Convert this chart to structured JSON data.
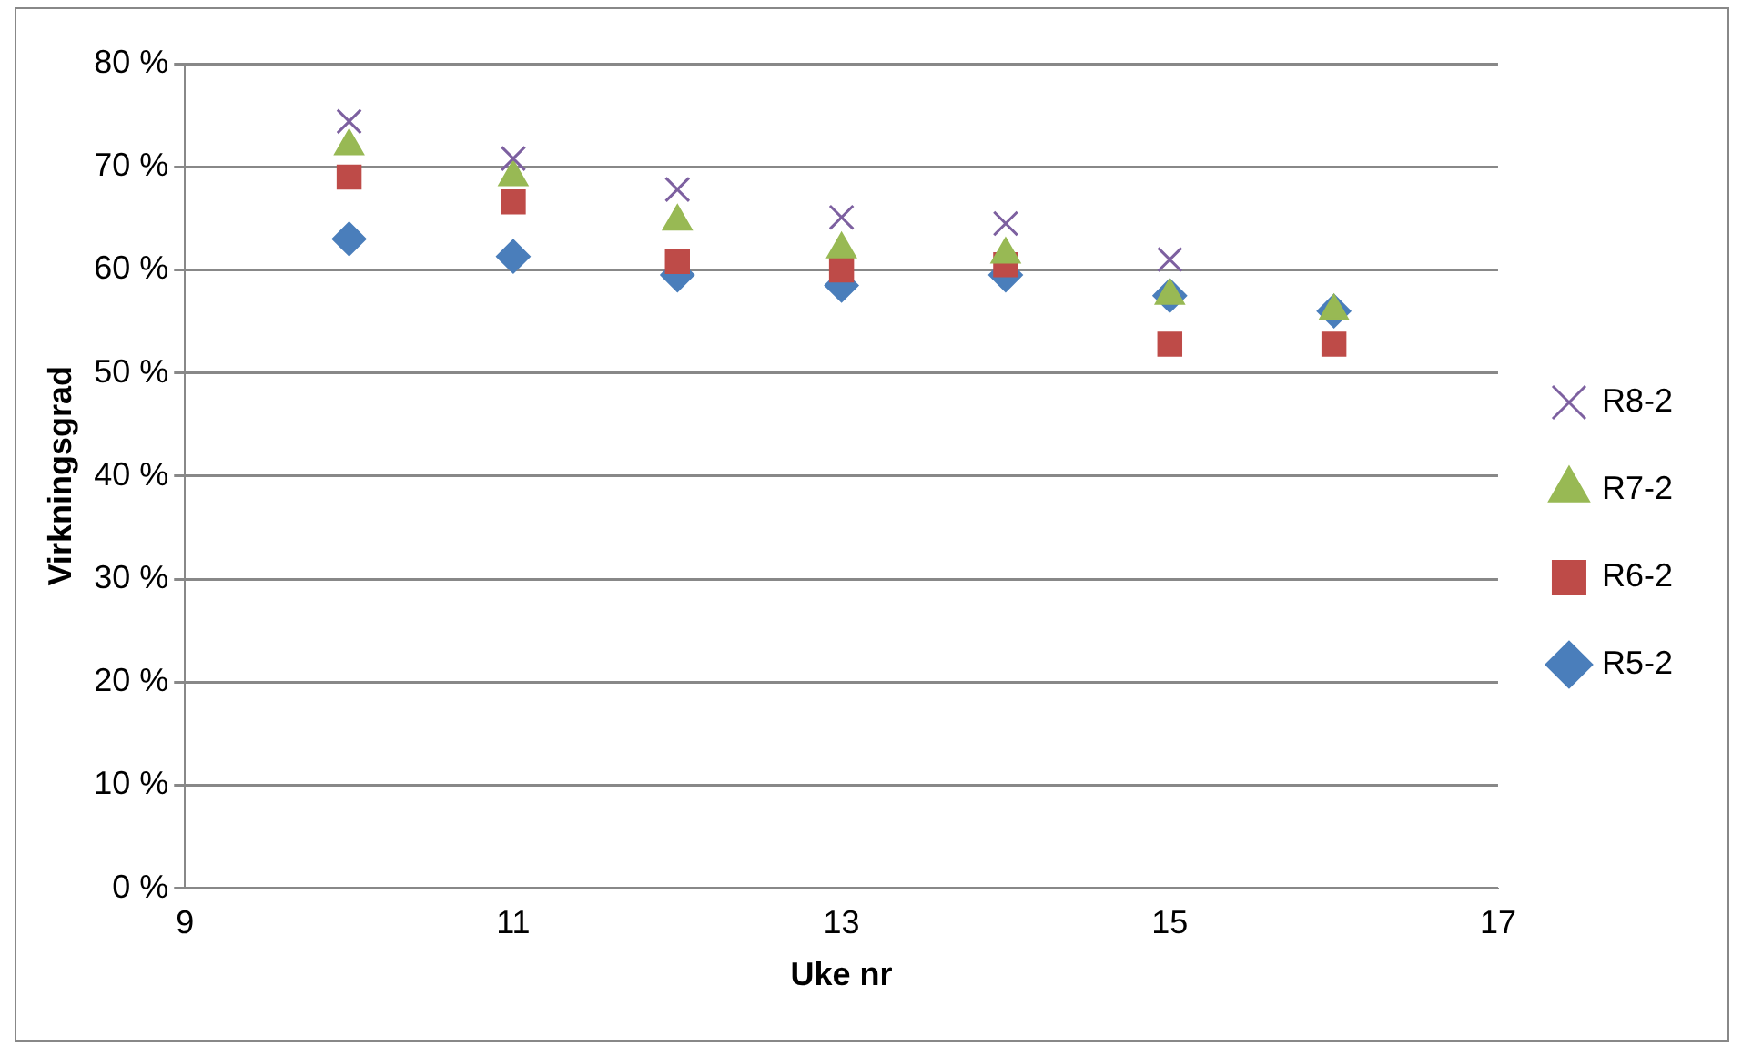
{
  "chart_data": {
    "type": "scatter",
    "xlabel": "Uke nr",
    "ylabel": "Virkningsgrad",
    "x": [
      10,
      11,
      12,
      13,
      14,
      15,
      16
    ],
    "series": [
      {
        "name": "R5-2",
        "color": "#4a7ebb",
        "marker": "diamond",
        "values": [
          63,
          61.3,
          59.5,
          58.5,
          59.5,
          57.5,
          56
        ]
      },
      {
        "name": "R6-2",
        "color": "#be4b48",
        "marker": "square",
        "values": [
          69,
          66.6,
          60.8,
          60,
          60.5,
          52.8,
          52.8
        ]
      },
      {
        "name": "R7-2",
        "color": "#98b954",
        "marker": "triangle",
        "values": [
          72,
          69,
          64.7,
          62,
          61.5,
          57.5,
          56
        ]
      },
      {
        "name": "R8-2",
        "color": "#7d60a0",
        "marker": "cross",
        "values": [
          74.4,
          70.8,
          67.8,
          65.1,
          64.5,
          61,
          null
        ]
      }
    ],
    "xlim": [
      9,
      17
    ],
    "xticks": [
      9,
      11,
      13,
      15,
      17
    ],
    "ylim": [
      0,
      80
    ],
    "yticks": [
      {
        "value": 0,
        "label": "0 %"
      },
      {
        "value": 10,
        "label": "10 %"
      },
      {
        "value": 20,
        "label": "20 %"
      },
      {
        "value": 30,
        "label": "30 %"
      },
      {
        "value": 40,
        "label": "40 %"
      },
      {
        "value": 50,
        "label": "50 %"
      },
      {
        "value": 60,
        "label": "60 %"
      },
      {
        "value": 70,
        "label": "70 %"
      },
      {
        "value": 80,
        "label": "80 %"
      }
    ],
    "grid": "y",
    "legend": "right"
  }
}
